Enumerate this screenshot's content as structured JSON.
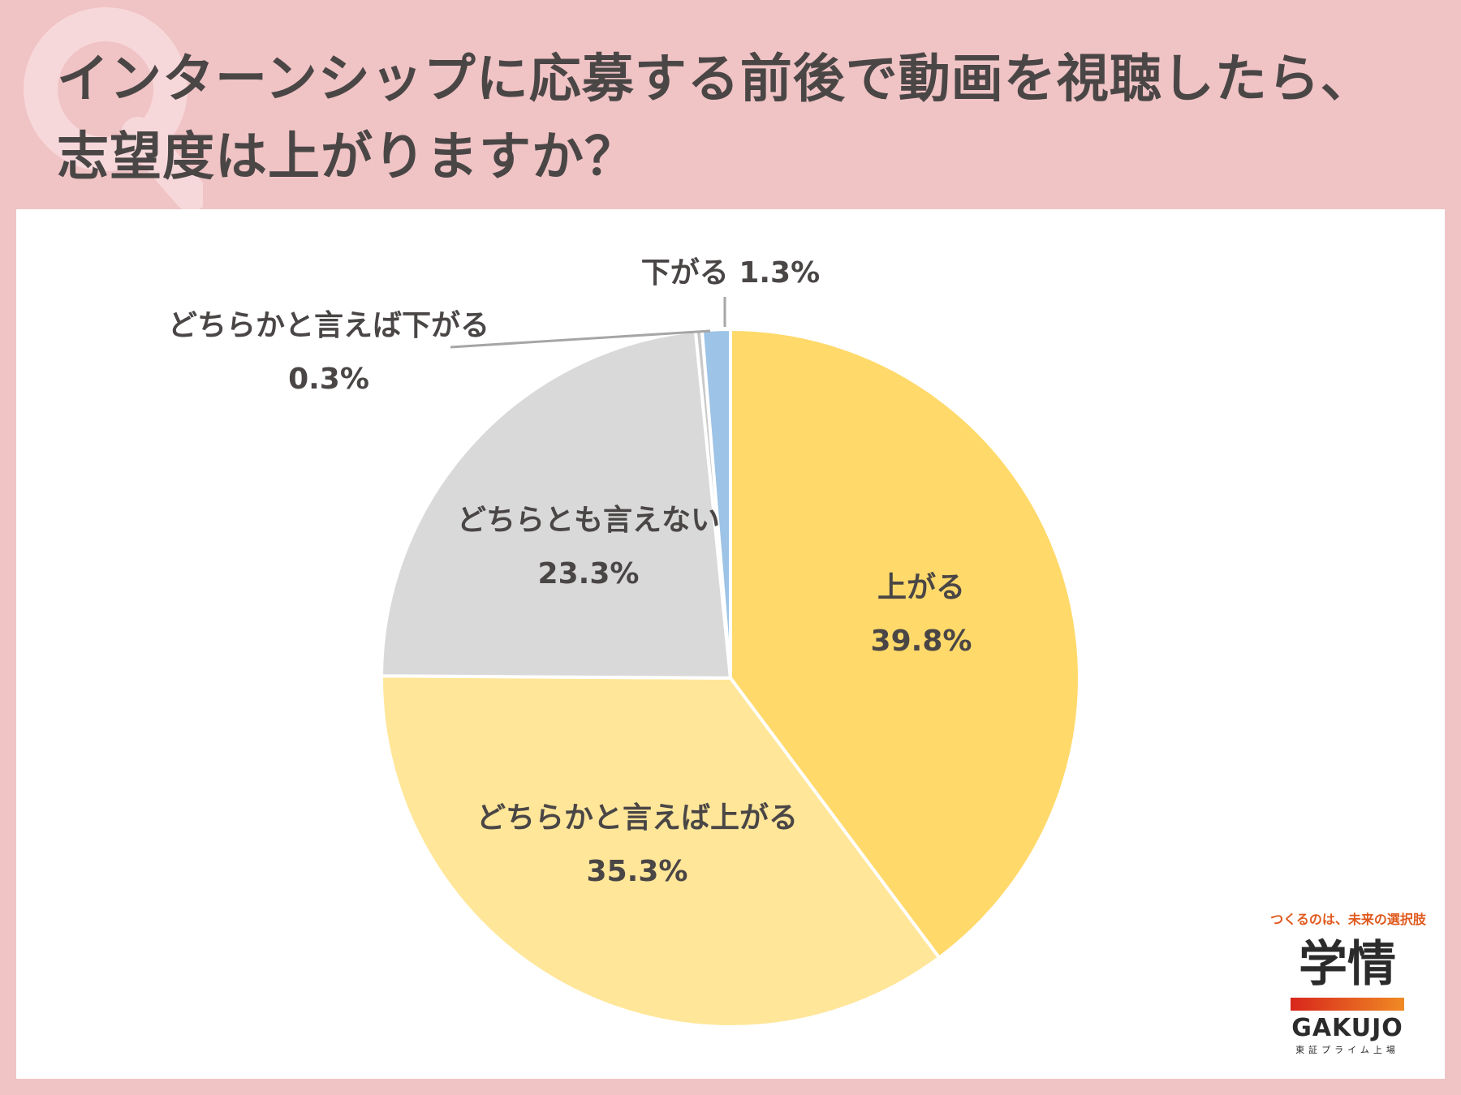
{
  "header": {
    "title_line1": "インターンシップに応募する前後で動画を視聴したら、",
    "title_line2": "志望度は上がりますか？"
  },
  "chart_data": {
    "type": "pie",
    "start_angle_deg": 0,
    "direction": "clockwise",
    "slices": [
      {
        "label": "上がる",
        "value": 39.8,
        "value_label": "39.8%",
        "color": "#ffd96a"
      },
      {
        "label": "どちらかと言えば上がる",
        "value": 35.3,
        "value_label": "35.3%",
        "color": "#ffe699"
      },
      {
        "label": "どちらとも言えない",
        "value": 23.3,
        "value_label": "23.3%",
        "color": "#d9d9d9"
      },
      {
        "label": "どちらかと言えば下がる",
        "value": 0.3,
        "value_label": "0.3%",
        "color": "#c9c9c9"
      },
      {
        "label": "下がる",
        "value": 1.3,
        "value_label": "1.3%",
        "color": "#9dc3e6"
      }
    ]
  },
  "logo": {
    "tagline": "つくるのは、未来の選択肢",
    "kanji": "学情",
    "english": "GAKUJO",
    "subtext": "東証プライム上場"
  }
}
